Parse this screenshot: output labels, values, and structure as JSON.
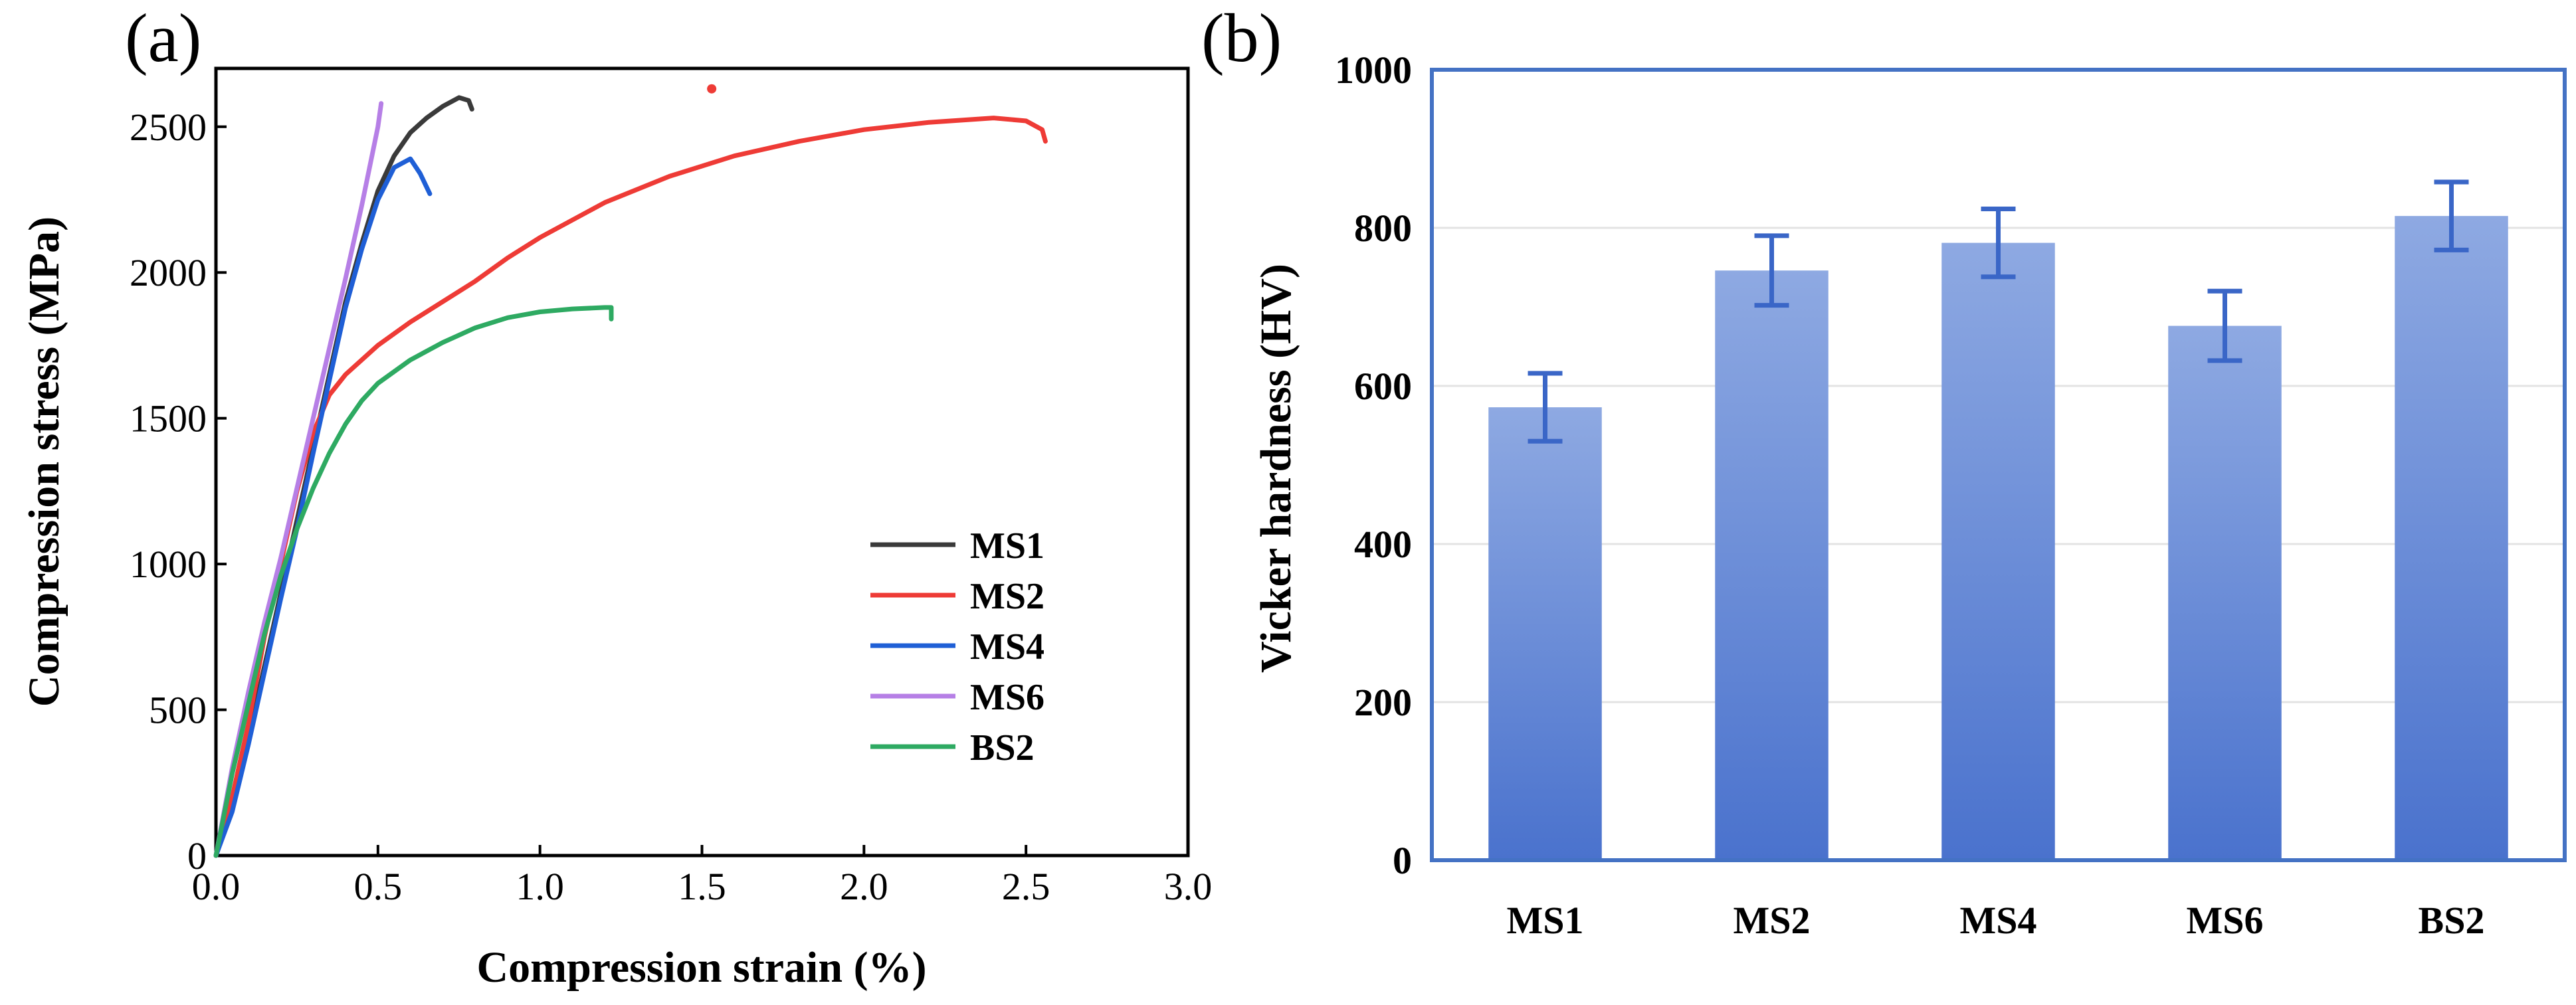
{
  "panels": {
    "a": {
      "label": "(a)"
    },
    "b": {
      "label": "(b)"
    }
  },
  "chart_data": [
    {
      "id": "a",
      "type": "line",
      "title": "",
      "xlabel": "Compression strain (%)",
      "ylabel": "Compression stress (MPa)",
      "xlim": [
        0,
        3.0
      ],
      "ylim": [
        0,
        2700
      ],
      "xticks": [
        0.0,
        0.5,
        1.0,
        1.5,
        2.0,
        2.5,
        3.0
      ],
      "xtick_labels": [
        "0.0",
        "0.5",
        "1.0",
        "1.5",
        "2.0",
        "2.5",
        "3.0"
      ],
      "yticks": [
        0,
        500,
        1000,
        1500,
        2000,
        2500
      ],
      "ytick_labels": [
        "0",
        "500",
        "1000",
        "1500",
        "2000",
        "2500"
      ],
      "grid": false,
      "legend_position": "bottom-right",
      "series": [
        {
          "name": "MS1",
          "color": "#3a3a3a",
          "x": [
            0,
            0.05,
            0.1,
            0.15,
            0.2,
            0.25,
            0.3,
            0.35,
            0.4,
            0.45,
            0.5,
            0.55,
            0.6,
            0.65,
            0.7,
            0.75,
            0.78,
            0.79
          ],
          "y": [
            0,
            160,
            400,
            650,
            900,
            1150,
            1400,
            1650,
            1900,
            2100,
            2280,
            2400,
            2480,
            2530,
            2570,
            2600,
            2590,
            2560
          ]
        },
        {
          "name": "MS2",
          "color": "#ee3b36",
          "x": [
            0,
            0.05,
            0.1,
            0.15,
            0.2,
            0.25,
            0.3,
            0.35,
            0.4,
            0.5,
            0.6,
            0.7,
            0.8,
            0.9,
            1.0,
            1.2,
            1.4,
            1.6,
            1.8,
            2.0,
            2.2,
            2.4,
            2.5,
            2.55,
            2.56
          ],
          "y": [
            0,
            200,
            450,
            750,
            1000,
            1250,
            1450,
            1580,
            1650,
            1750,
            1830,
            1900,
            1970,
            2050,
            2120,
            2240,
            2330,
            2400,
            2450,
            2490,
            2515,
            2530,
            2520,
            2490,
            2450
          ]
        },
        {
          "name": "MS4",
          "color": "#1f5fd6",
          "x": [
            0,
            0.05,
            0.1,
            0.15,
            0.2,
            0.25,
            0.3,
            0.35,
            0.4,
            0.45,
            0.5,
            0.55,
            0.6,
            0.63,
            0.66
          ],
          "y": [
            0,
            150,
            380,
            630,
            880,
            1120,
            1380,
            1630,
            1880,
            2080,
            2250,
            2360,
            2390,
            2340,
            2270
          ]
        },
        {
          "name": "MS6",
          "color": "#b67fe6",
          "x": [
            0,
            0.05,
            0.1,
            0.15,
            0.2,
            0.25,
            0.3,
            0.35,
            0.4,
            0.45,
            0.5,
            0.51
          ],
          "y": [
            0,
            300,
            560,
            800,
            1020,
            1260,
            1500,
            1740,
            1980,
            2230,
            2500,
            2580
          ]
        },
        {
          "name": "BS2",
          "color": "#2eaa62",
          "x": [
            0,
            0.05,
            0.1,
            0.15,
            0.2,
            0.25,
            0.3,
            0.35,
            0.4,
            0.45,
            0.5,
            0.6,
            0.7,
            0.8,
            0.9,
            1.0,
            1.1,
            1.2,
            1.22,
            1.22
          ],
          "y": [
            0,
            280,
            520,
            760,
            960,
            1120,
            1260,
            1380,
            1480,
            1560,
            1620,
            1700,
            1760,
            1810,
            1845,
            1865,
            1875,
            1880,
            1880,
            1840
          ]
        }
      ],
      "annotations": [
        {
          "kind": "dot",
          "color": "#ee3b36",
          "x": 1.53,
          "y": 2630
        }
      ]
    },
    {
      "id": "b",
      "type": "bar",
      "title": "",
      "xlabel": "",
      "ylabel": "Vicker hardness (HV)",
      "categories": [
        "MS1",
        "MS2",
        "MS4",
        "MS6",
        "BS2"
      ],
      "values": [
        573,
        746,
        781,
        676,
        815
      ],
      "errors": [
        43,
        44,
        43,
        44,
        43
      ],
      "ylim": [
        0,
        1000
      ],
      "yticks": [
        0,
        200,
        400,
        600,
        800,
        1000
      ],
      "ytick_labels": [
        "0",
        "200",
        "400",
        "600",
        "800",
        "1000"
      ],
      "grid": true,
      "bar_color_top": "#8ea9e2",
      "bar_color_bottom": "#4a72cd",
      "axis_color": "#4472c4",
      "errorbar_color": "#3a66c7"
    }
  ]
}
